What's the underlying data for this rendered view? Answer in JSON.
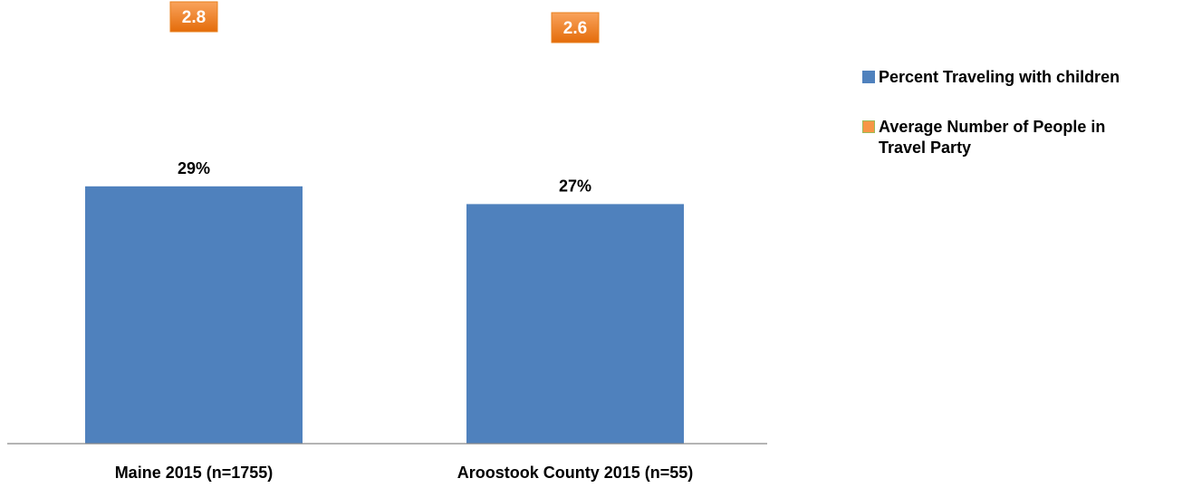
{
  "chart_data": {
    "type": "bar",
    "categories": [
      "Maine 2015 (n=1755)",
      "Aroostook County 2015 (n=55)"
    ],
    "series": [
      {
        "name": "Percent Traveling with children",
        "values": [
          29,
          27
        ],
        "labels": [
          "29%",
          "27%"
        ],
        "color": "#4f81bd"
      },
      {
        "name": "Average Number of People in Travel Party",
        "values": [
          2.8,
          2.6
        ],
        "labels": [
          "2.8",
          "2.6"
        ],
        "color": "#f79646"
      }
    ],
    "legend_position": "right",
    "grid": false
  }
}
